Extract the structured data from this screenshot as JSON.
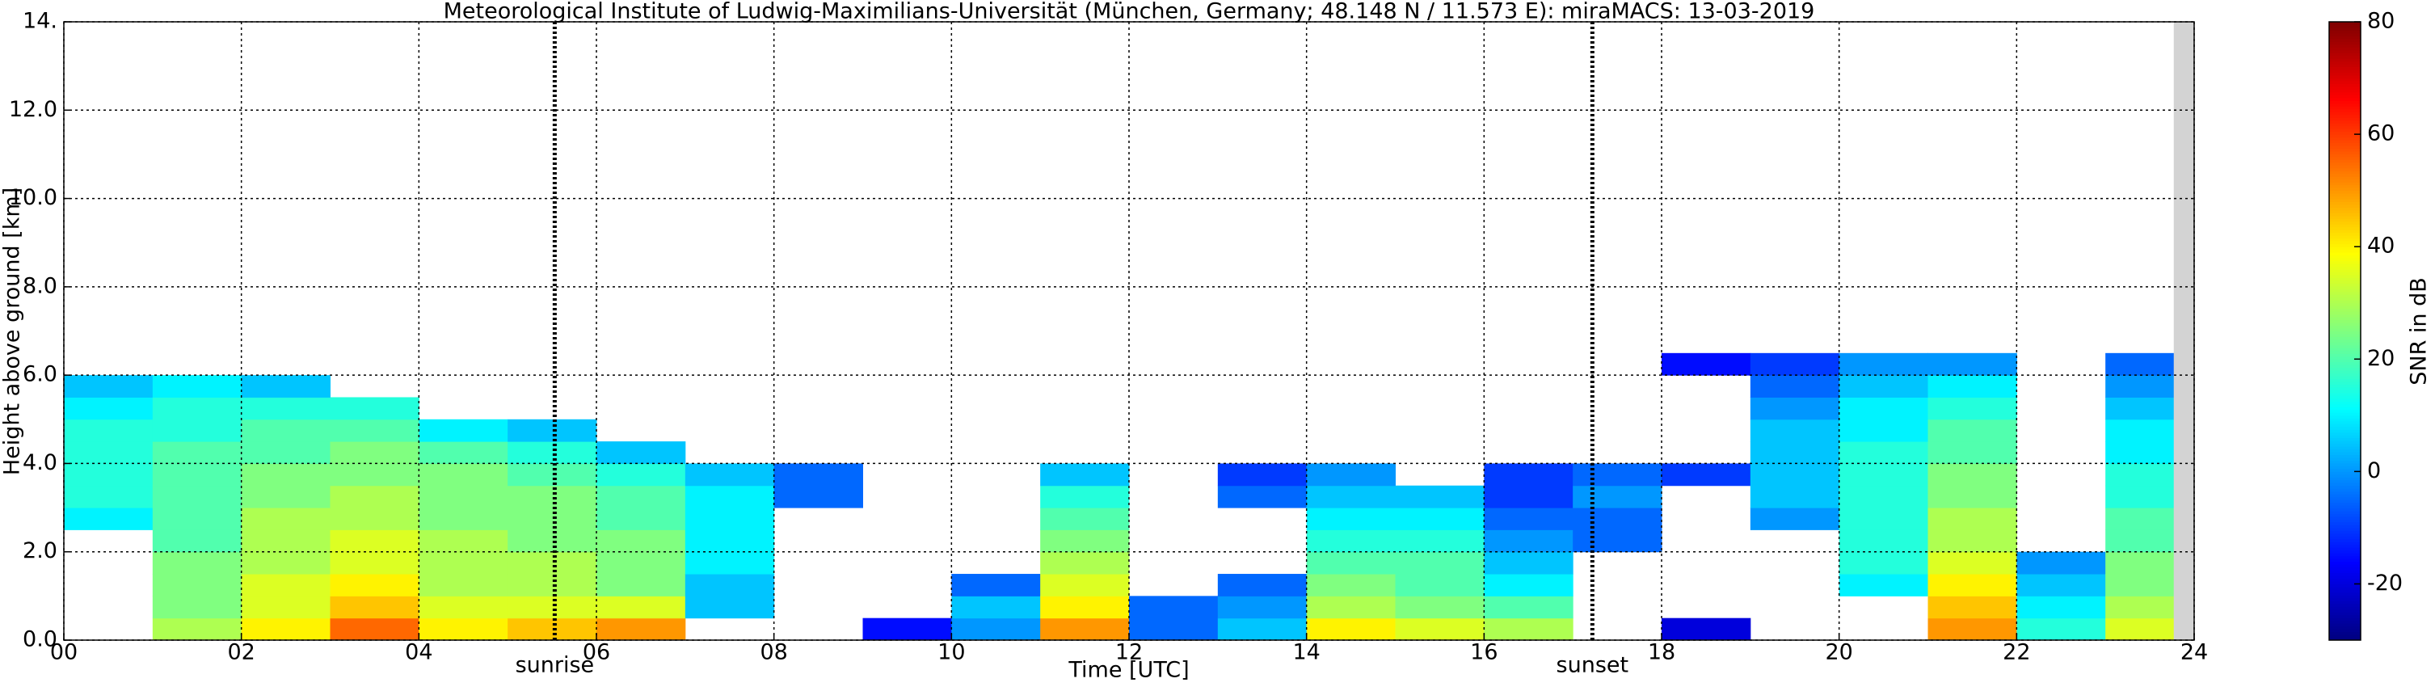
{
  "chart_data": {
    "type": "heatmap",
    "title": "Meteorological Institute of Ludwig-Maximilians-Universität (München, Germany; 48.148 N / 11.573 E):    miraMACS: 13-03-2019",
    "x_label": "Time [UTC]",
    "y_label": "Height above ground [km]",
    "colorbar_label": "SNR in dB",
    "colormap": "jet",
    "grid": true,
    "xlim": [
      0,
      24
    ],
    "ylim": [
      0,
      14
    ],
    "clim": [
      -30,
      80
    ],
    "xticks": [
      {
        "value": 0,
        "label": "00"
      },
      {
        "value": 2,
        "label": "02"
      },
      {
        "value": 4,
        "label": "04"
      },
      {
        "value": 6,
        "label": "06"
      },
      {
        "value": 8,
        "label": "08"
      },
      {
        "value": 10,
        "label": "10"
      },
      {
        "value": 12,
        "label": "12"
      },
      {
        "value": 14,
        "label": "14"
      },
      {
        "value": 16,
        "label": "16"
      },
      {
        "value": 18,
        "label": "18"
      },
      {
        "value": 20,
        "label": "20"
      },
      {
        "value": 22,
        "label": "22"
      },
      {
        "value": 24,
        "label": "24"
      }
    ],
    "yticks": [
      {
        "value": 0,
        "label": "0.0"
      },
      {
        "value": 2,
        "label": "2.0"
      },
      {
        "value": 4,
        "label": "4.0"
      },
      {
        "value": 6,
        "label": "6.0"
      },
      {
        "value": 8,
        "label": "8.0"
      },
      {
        "value": 10,
        "label": "10.0"
      },
      {
        "value": 12,
        "label": "12.0"
      },
      {
        "value": 14,
        "label": "14."
      }
    ],
    "cticks": [
      -20,
      0,
      20,
      40,
      60,
      80
    ],
    "annotations": [
      {
        "text": "sunrise",
        "x": 5.53
      },
      {
        "text": "sunset",
        "x": 17.22
      }
    ],
    "missing_x": [
      23.77,
      24
    ],
    "x_edges": [
      0,
      1,
      2,
      3,
      4,
      5,
      6,
      7,
      8,
      9,
      10,
      11,
      12,
      13,
      14,
      15,
      16,
      17,
      18,
      19,
      20,
      21,
      22,
      23,
      24
    ],
    "y_edges": [
      0,
      0.5,
      1,
      1.5,
      2,
      2.5,
      3,
      3.5,
      4,
      4.5,
      5,
      5.5,
      6,
      6.5,
      7
    ],
    "values": [
      [
        null,
        null,
        null,
        null,
        null,
        10,
        15,
        15,
        15,
        15,
        10,
        5,
        null,
        null
      ],
      [
        30,
        25,
        25,
        25,
        20,
        20,
        20,
        20,
        20,
        15,
        15,
        10,
        null,
        null
      ],
      [
        40,
        35,
        35,
        30,
        30,
        30,
        25,
        25,
        20,
        20,
        15,
        5,
        null,
        null
      ],
      [
        55,
        45,
        40,
        35,
        35,
        30,
        30,
        25,
        25,
        20,
        15,
        null,
        null,
        null
      ],
      [
        40,
        35,
        30,
        30,
        30,
        25,
        25,
        25,
        20,
        10,
        null,
        null,
        null,
        null
      ],
      [
        45,
        35,
        30,
        30,
        25,
        25,
        25,
        20,
        15,
        5,
        null,
        null,
        null,
        null
      ],
      [
        50,
        35,
        25,
        25,
        25,
        20,
        20,
        15,
        5,
        null,
        null,
        null,
        null,
        null
      ],
      [
        null,
        5,
        5,
        10,
        10,
        10,
        10,
        5,
        null,
        null,
        null,
        null,
        null,
        null
      ],
      [
        null,
        null,
        null,
        null,
        null,
        null,
        -5,
        -5,
        null,
        null,
        null,
        null,
        null,
        null
      ],
      [
        -15,
        null,
        null,
        null,
        null,
        null,
        null,
        null,
        null,
        null,
        null,
        null,
        null,
        null
      ],
      [
        0,
        5,
        -5,
        null,
        null,
        null,
        null,
        null,
        null,
        null,
        null,
        null,
        null,
        null
      ],
      [
        50,
        40,
        35,
        30,
        25,
        20,
        15,
        5,
        null,
        null,
        null,
        null,
        null,
        null
      ],
      [
        -5,
        -5,
        null,
        null,
        null,
        null,
        null,
        null,
        null,
        null,
        null,
        null,
        null,
        null
      ],
      [
        5,
        0,
        -5,
        null,
        null,
        null,
        -5,
        -10,
        null,
        null,
        null,
        null,
        null,
        null
      ],
      [
        40,
        30,
        25,
        20,
        15,
        10,
        5,
        0,
        null,
        null,
        null,
        null,
        null,
        null
      ],
      [
        35,
        25,
        20,
        20,
        15,
        10,
        5,
        null,
        null,
        null,
        null,
        null,
        null,
        null
      ],
      [
        30,
        20,
        10,
        5,
        0,
        -5,
        -10,
        -10,
        null,
        null,
        null,
        null,
        null,
        null
      ],
      [
        null,
        null,
        null,
        null,
        -5,
        -5,
        0,
        -5,
        null,
        null,
        null,
        null,
        null,
        null
      ],
      [
        -20,
        null,
        null,
        null,
        null,
        null,
        null,
        -10,
        null,
        null,
        null,
        null,
        -15,
        null
      ],
      [
        null,
        null,
        null,
        null,
        null,
        0,
        5,
        5,
        5,
        5,
        0,
        -5,
        -10,
        null
      ],
      [
        null,
        null,
        10,
        15,
        15,
        15,
        15,
        15,
        15,
        10,
        10,
        5,
        0,
        null
      ],
      [
        50,
        45,
        40,
        35,
        30,
        30,
        25,
        25,
        20,
        20,
        15,
        10,
        0,
        null
      ],
      [
        15,
        10,
        5,
        0,
        null,
        null,
        null,
        null,
        null,
        null,
        null,
        null,
        null,
        null
      ],
      [
        35,
        30,
        25,
        25,
        20,
        20,
        15,
        15,
        10,
        10,
        5,
        0,
        -5,
        null
      ]
    ]
  }
}
